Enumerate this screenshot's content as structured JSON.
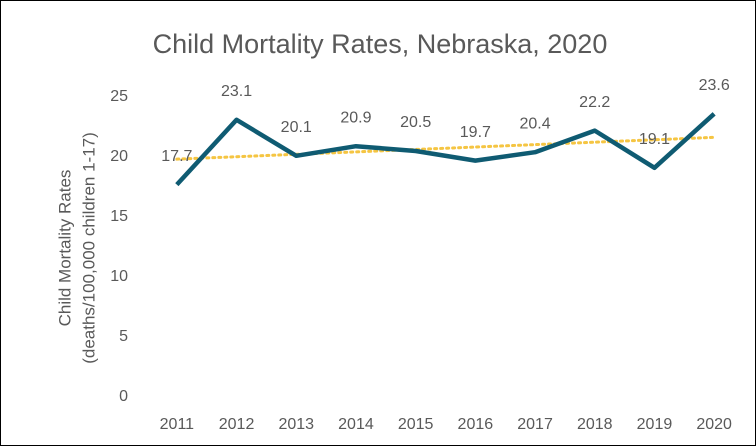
{
  "chart_data": {
    "type": "line",
    "title": "Child Mortality Rates, Nebraska, 2020",
    "ylabel": [
      "Child Mortality Rates",
      "(deaths/100,000 children 1-17)"
    ],
    "categories": [
      "2011",
      "2012",
      "2013",
      "2014",
      "2015",
      "2016",
      "2017",
      "2018",
      "2019",
      "2020"
    ],
    "values": [
      17.7,
      23.1,
      20.1,
      20.9,
      20.5,
      19.7,
      20.4,
      22.2,
      19.1,
      23.6
    ],
    "color": "#0f5b72",
    "trendline": true,
    "trendline_color": "#f5c542",
    "ylim": [
      0,
      25
    ],
    "yticks": [
      0,
      5,
      10,
      15,
      20,
      25
    ],
    "grid": false,
    "data_labels": true
  }
}
